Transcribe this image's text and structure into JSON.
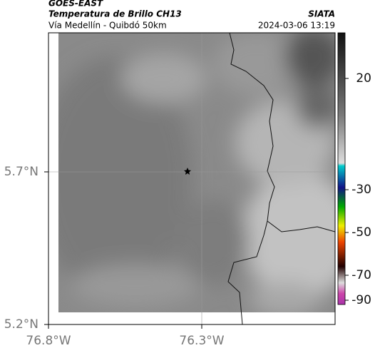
{
  "header": {
    "source": "GOES-EAST",
    "title": "Temperatura de Brillo CH13",
    "agency": "SIATA",
    "route": "Vía Medellín - Quibdó 50km",
    "timestamp": "2024-03-06 13:19"
  },
  "map": {
    "lat_labels": [
      "5.7°N",
      "5.2°N"
    ],
    "lon_labels": [
      "76.8°W",
      "76.3°W"
    ]
  },
  "colorbar": {
    "tick_labels": [
      "20",
      "-30",
      "-50",
      "-70",
      "-90"
    ]
  }
}
